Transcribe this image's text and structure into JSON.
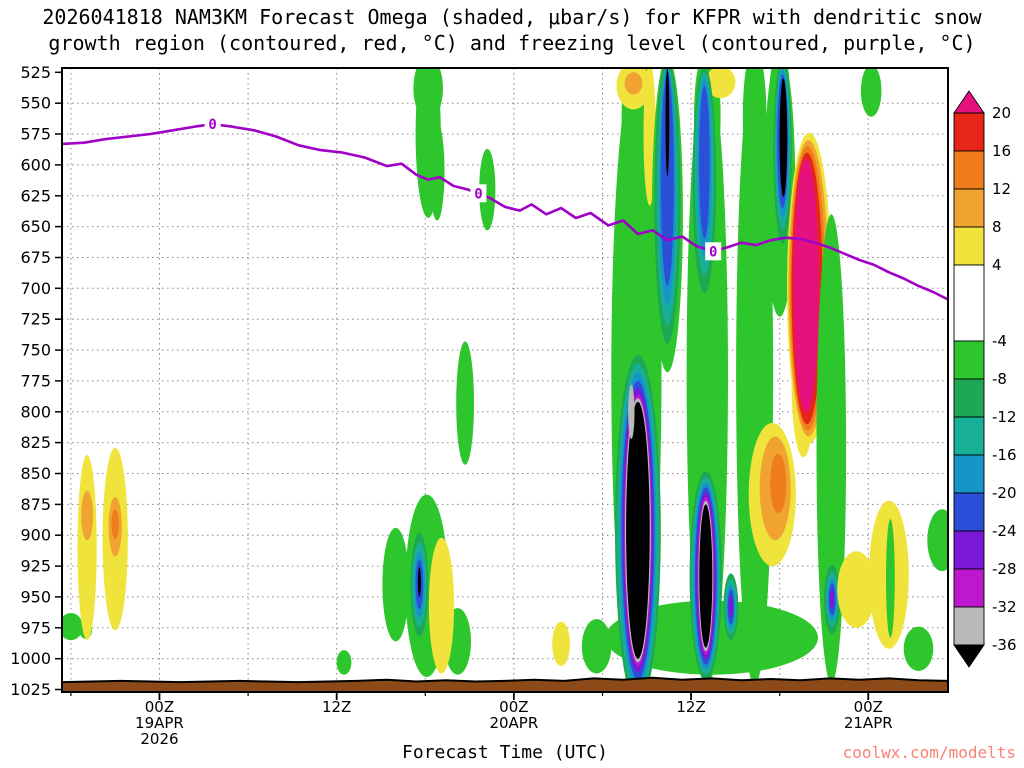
{
  "title": {
    "line1": "2026041818 NAM3KM Forecast Omega (shaded, μbar/s) for KFPR with dendritic snow",
    "line2": "growth region (contoured, red, °C) and freezing level (contoured, purple, °C)"
  },
  "footer": {
    "xlabel": "Forecast Time (UTC)",
    "watermark": "coolwx.com/modelts",
    "watermark_color": "#fa8072"
  },
  "chart_data": {
    "type": "heatmap",
    "model": "NAM3KM",
    "init": "2026041818",
    "station": "KFPR",
    "shaded_variable": "Omega",
    "shaded_units": "μbar/s",
    "x_axis": {
      "label": "Forecast Time (UTC)",
      "range_hours": [
        0,
        60
      ],
      "major_ticks": [
        {
          "hour": 6.6,
          "label": "00Z",
          "date": "19APR",
          "year": "2026"
        },
        {
          "hour": 18.6,
          "label": "12Z"
        },
        {
          "hour": 30.6,
          "label": "00Z",
          "date": "20APR"
        },
        {
          "hour": 42.6,
          "label": "12Z"
        },
        {
          "hour": 54.6,
          "label": "00Z",
          "date": "21APR"
        }
      ],
      "grid_hours": [
        0.6,
        6.6,
        12.6,
        18.6,
        24.6,
        30.6,
        36.6,
        42.6,
        48.6,
        54.6
      ]
    },
    "y_axis": {
      "unit": "hPa",
      "range": [
        525,
        1025
      ],
      "ticks": [
        525,
        550,
        575,
        600,
        625,
        650,
        675,
        700,
        725,
        750,
        775,
        800,
        825,
        850,
        875,
        900,
        925,
        950,
        975,
        1000,
        1025
      ],
      "grid_pressures": [
        550,
        575,
        600,
        625,
        650,
        675,
        700,
        725,
        750,
        775,
        800,
        825,
        850,
        875,
        900,
        925,
        950,
        975,
        1000
      ]
    },
    "palette": {
      "pink": "#e7117e",
      "red": "#e82617",
      "orange2": "#ef7d1a",
      "orange1": "#f0a330",
      "yellow": "#efe33c",
      "white": "#ffffff",
      "g1": "#2dc62d",
      "g2": "#1fa854",
      "teal": "#17b096",
      "cyan": "#1795c8",
      "blue": "#2b4fd8",
      "violet": "#7a18d8",
      "purple": "#bc18ce",
      "gray": "#b9b9b9",
      "black": "#000000"
    },
    "colorbar": {
      "boundaries": [
        20,
        16,
        12,
        8,
        4,
        -4,
        -8,
        -12,
        -16,
        -20,
        -24,
        -28,
        -32,
        -36
      ],
      "segments": [
        "pink",
        "red",
        "orange2",
        "orange1",
        "yellow",
        "white",
        "g1",
        "g2",
        "teal",
        "cyan",
        "blue",
        "violet",
        "purple",
        "gray",
        "black"
      ]
    },
    "freezing_level": {
      "color": "#a000c8",
      "label": "0",
      "points": [
        [
          0,
          583
        ],
        [
          1.5,
          582
        ],
        [
          3,
          579
        ],
        [
          4.5,
          577
        ],
        [
          6,
          575
        ],
        [
          7.5,
          572
        ],
        [
          9,
          569
        ],
        [
          10.2,
          567
        ],
        [
          11.5,
          569
        ],
        [
          13,
          572
        ],
        [
          14.5,
          577
        ],
        [
          16,
          584
        ],
        [
          17.5,
          588
        ],
        [
          19,
          590
        ],
        [
          20.5,
          594
        ],
        [
          22,
          601
        ],
        [
          23,
          599
        ],
        [
          24,
          608
        ],
        [
          24.8,
          612
        ],
        [
          25.6,
          610
        ],
        [
          26.5,
          617
        ],
        [
          27.5,
          620
        ],
        [
          28.2,
          623
        ],
        [
          29,
          627
        ],
        [
          30,
          634
        ],
        [
          31,
          637
        ],
        [
          31.8,
          632
        ],
        [
          32.8,
          640
        ],
        [
          33.8,
          635
        ],
        [
          34.8,
          643
        ],
        [
          35.8,
          639
        ],
        [
          37,
          649
        ],
        [
          38,
          645
        ],
        [
          39,
          656
        ],
        [
          40,
          653
        ],
        [
          41,
          661
        ],
        [
          42,
          658
        ],
        [
          43,
          666
        ],
        [
          44.1,
          670
        ],
        [
          45,
          667
        ],
        [
          46,
          663
        ],
        [
          47,
          665
        ],
        [
          48,
          661
        ],
        [
          49,
          659
        ],
        [
          50,
          660
        ],
        [
          51,
          663
        ],
        [
          52,
          667
        ],
        [
          53,
          672
        ],
        [
          54,
          677
        ],
        [
          55,
          681
        ],
        [
          56,
          687
        ],
        [
          57,
          692
        ],
        [
          58,
          698
        ],
        [
          59,
          703
        ],
        [
          60,
          709
        ]
      ],
      "labels": [
        [
          10.2,
          567
        ],
        [
          28.2,
          623
        ],
        [
          44.1,
          670
        ]
      ]
    },
    "terrain": {
      "color": "#8b4a17",
      "profile": [
        [
          0,
          1019
        ],
        [
          4,
          1018
        ],
        [
          8,
          1019
        ],
        [
          12,
          1018
        ],
        [
          16,
          1019
        ],
        [
          20,
          1018
        ],
        [
          22,
          1017
        ],
        [
          24,
          1018.5
        ],
        [
          26,
          1017.5
        ],
        [
          28,
          1018.5
        ],
        [
          30,
          1018
        ],
        [
          32,
          1017
        ],
        [
          34,
          1018
        ],
        [
          36,
          1016
        ],
        [
          38,
          1017
        ],
        [
          40,
          1015.5
        ],
        [
          42,
          1017
        ],
        [
          44,
          1016
        ],
        [
          46,
          1017.5
        ],
        [
          48,
          1016.5
        ],
        [
          50,
          1017.5
        ],
        [
          52,
          1016
        ],
        [
          54,
          1017
        ],
        [
          56,
          1016
        ],
        [
          58,
          1017.5
        ],
        [
          60,
          1018
        ]
      ]
    },
    "blob_format": [
      "hour",
      "pressure_hPa",
      "rx_hours",
      "ry_hPa",
      "color_key"
    ],
    "omega_blobs": [
      [
        0.6,
        974,
        0.8,
        11,
        "g1"
      ],
      [
        1.6,
        976,
        0.45,
        8,
        "g1"
      ],
      [
        1.7,
        910,
        0.65,
        75,
        "yellow"
      ],
      [
        1.7,
        884,
        0.4,
        20,
        "orange1"
      ],
      [
        3.6,
        903,
        0.85,
        74,
        "yellow"
      ],
      [
        3.6,
        893,
        0.45,
        24,
        "orange1"
      ],
      [
        3.6,
        891,
        0.25,
        12,
        "orange2"
      ],
      [
        19.1,
        1003,
        0.5,
        10,
        "g1"
      ],
      [
        22.6,
        940,
        0.9,
        46,
        "g1"
      ],
      [
        24.7,
        941,
        1.45,
        74,
        "g1"
      ],
      [
        26.8,
        986,
        0.9,
        27,
        "g1"
      ],
      [
        25.7,
        957,
        0.85,
        55,
        "yellow"
      ],
      [
        24.2,
        940,
        0.6,
        42,
        "g2"
      ],
      [
        24.2,
        940,
        0.48,
        34,
        "teal"
      ],
      [
        24.2,
        940,
        0.36,
        27,
        "cyan"
      ],
      [
        24.2,
        940,
        0.26,
        20,
        "blue"
      ],
      [
        24.2,
        938,
        0.1,
        12,
        "black"
      ],
      [
        24.8,
        575,
        0.85,
        68,
        "g1"
      ],
      [
        24.8,
        538,
        1.0,
        26,
        "g1"
      ],
      [
        25.4,
        605,
        0.5,
        40,
        "g1"
      ],
      [
        28.8,
        620,
        0.55,
        33,
        "g1"
      ],
      [
        27.3,
        793,
        0.6,
        50,
        "g1"
      ],
      [
        33.8,
        988,
        0.6,
        18,
        "yellow"
      ],
      [
        44.0,
        983,
        7.2,
        30,
        "g1"
      ],
      [
        36.2,
        990,
        1.0,
        22,
        "g1"
      ],
      [
        38.9,
        770,
        1.7,
        252,
        "g1"
      ],
      [
        38.9,
        560,
        1.0,
        55,
        "g1"
      ],
      [
        38.7,
        536,
        1.15,
        19,
        "yellow"
      ],
      [
        38.7,
        534,
        0.6,
        9,
        "orange1"
      ],
      [
        39.8,
        575,
        0.42,
        58,
        "yellow"
      ],
      [
        39.0,
        896,
        1.55,
        142,
        "g2"
      ],
      [
        39.0,
        896,
        1.4,
        135,
        "teal"
      ],
      [
        39.0,
        896,
        1.25,
        128,
        "cyan"
      ],
      [
        39.0,
        896,
        1.12,
        121,
        "blue"
      ],
      [
        39.0,
        896,
        1.02,
        115,
        "violet"
      ],
      [
        39.0,
        896,
        0.94,
        110,
        "purple"
      ],
      [
        39.0,
        896,
        0.88,
        107,
        "gray"
      ],
      [
        39.0,
        896,
        0.8,
        104,
        "black"
      ],
      [
        38.55,
        800,
        0.22,
        22,
        "gray"
      ],
      [
        41.0,
        640,
        1.05,
        128,
        "g1"
      ],
      [
        41.0,
        630,
        0.88,
        115,
        "g2"
      ],
      [
        41.0,
        625,
        0.72,
        105,
        "teal"
      ],
      [
        41.0,
        618,
        0.58,
        96,
        "cyan"
      ],
      [
        41.0,
        612,
        0.44,
        86,
        "blue"
      ],
      [
        41.0,
        565,
        0.13,
        44,
        "black"
      ],
      [
        43.7,
        770,
        1.4,
        252,
        "g1"
      ],
      [
        43.7,
        560,
        0.9,
        55,
        "g1"
      ],
      [
        44.6,
        533,
        1.0,
        13,
        "yellow"
      ],
      [
        43.5,
        612,
        0.8,
        92,
        "g2"
      ],
      [
        43.5,
        607,
        0.65,
        82,
        "teal"
      ],
      [
        43.5,
        602,
        0.5,
        72,
        "cyan"
      ],
      [
        43.5,
        598,
        0.36,
        62,
        "blue"
      ],
      [
        43.6,
        933,
        1.1,
        85,
        "g2"
      ],
      [
        43.6,
        933,
        0.97,
        80,
        "teal"
      ],
      [
        43.6,
        933,
        0.85,
        76,
        "cyan"
      ],
      [
        43.6,
        933,
        0.74,
        72,
        "blue"
      ],
      [
        43.6,
        933,
        0.64,
        68,
        "violet"
      ],
      [
        43.6,
        933,
        0.56,
        64,
        "purple"
      ],
      [
        43.6,
        933,
        0.5,
        61,
        "gray"
      ],
      [
        43.6,
        933,
        0.44,
        58,
        "black"
      ],
      [
        45.3,
        958,
        0.5,
        27,
        "g2"
      ],
      [
        45.3,
        958,
        0.4,
        22,
        "teal"
      ],
      [
        45.3,
        958,
        0.3,
        18,
        "cyan"
      ],
      [
        45.3,
        958,
        0.22,
        14,
        "blue"
      ],
      [
        45.3,
        958,
        0.14,
        9,
        "violet"
      ],
      [
        46.9,
        770,
        1.25,
        252,
        "g1"
      ],
      [
        46.9,
        560,
        0.8,
        55,
        "g1"
      ],
      [
        48.1,
        867,
        1.6,
        58,
        "yellow"
      ],
      [
        50.2,
        775,
        0.8,
        62,
        "yellow"
      ],
      [
        48.3,
        862,
        1.05,
        42,
        "orange1"
      ],
      [
        48.5,
        858,
        0.55,
        24,
        "orange2"
      ],
      [
        48.6,
        615,
        1.05,
        108,
        "g1"
      ],
      [
        48.6,
        545,
        0.7,
        40,
        "g1"
      ],
      [
        48.8,
        588,
        0.62,
        76,
        "g2"
      ],
      [
        48.8,
        585,
        0.52,
        67,
        "teal"
      ],
      [
        48.8,
        583,
        0.44,
        60,
        "cyan"
      ],
      [
        48.8,
        581,
        0.36,
        54,
        "blue"
      ],
      [
        48.85,
        578,
        0.26,
        48,
        "black"
      ],
      [
        50.6,
        700,
        1.5,
        126,
        "yellow"
      ],
      [
        50.55,
        700,
        1.35,
        120,
        "orange1"
      ],
      [
        50.5,
        700,
        1.2,
        115,
        "orange2"
      ],
      [
        50.45,
        700,
        1.05,
        110,
        "red"
      ],
      [
        50.4,
        698,
        0.85,
        103,
        "pink"
      ],
      [
        52.1,
        830,
        1.0,
        190,
        "g1"
      ],
      [
        52.15,
        952,
        0.55,
        28,
        "g2"
      ],
      [
        52.15,
        952,
        0.42,
        22,
        "teal"
      ],
      [
        52.15,
        952,
        0.32,
        17,
        "cyan"
      ],
      [
        52.15,
        952,
        0.24,
        13,
        "blue"
      ],
      [
        52.15,
        952,
        0.15,
        8,
        "violet"
      ],
      [
        53.8,
        944,
        1.3,
        31,
        "yellow"
      ],
      [
        56.0,
        932,
        1.35,
        60,
        "yellow"
      ],
      [
        56.1,
        935,
        0.3,
        48,
        "g1"
      ],
      [
        54.8,
        540,
        0.7,
        21,
        "g1"
      ],
      [
        59.6,
        904,
        1.0,
        25,
        "g1"
      ],
      [
        58.0,
        992,
        1.0,
        18,
        "g1"
      ]
    ]
  }
}
